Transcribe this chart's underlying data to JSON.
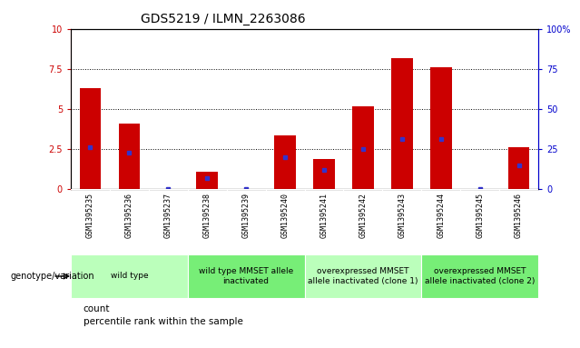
{
  "title": "GDS5219 / ILMN_2263086",
  "samples": [
    "GSM1395235",
    "GSM1395236",
    "GSM1395237",
    "GSM1395238",
    "GSM1395239",
    "GSM1395240",
    "GSM1395241",
    "GSM1395242",
    "GSM1395243",
    "GSM1395244",
    "GSM1395245",
    "GSM1395246"
  ],
  "counts": [
    6.3,
    4.1,
    0.0,
    1.1,
    0.0,
    3.35,
    1.9,
    5.15,
    8.2,
    7.6,
    0.0,
    2.6
  ],
  "percentiles": [
    26,
    23,
    0,
    7,
    0,
    20,
    12,
    25,
    31,
    31,
    0,
    15
  ],
  "ylim_left": [
    0,
    10
  ],
  "ylim_right": [
    0,
    100
  ],
  "yticks_left": [
    0,
    2.5,
    5.0,
    7.5,
    10
  ],
  "ytick_labels_left": [
    "0",
    "2.5",
    "5",
    "7.5",
    "10"
  ],
  "yticks_right": [
    0,
    25,
    50,
    75,
    100
  ],
  "ytick_labels_right": [
    "0",
    "25",
    "50",
    "75",
    "100%"
  ],
  "grid_values": [
    2.5,
    5.0,
    7.5
  ],
  "bar_color": "#cc0000",
  "dot_color": "#3333cc",
  "sample_bg": "#cccccc",
  "plot_bg": "#ffffff",
  "groups": [
    {
      "label": "wild type",
      "start": 0,
      "end": 3,
      "color": "#bbffbb"
    },
    {
      "label": "wild type MMSET allele\ninactivated",
      "start": 3,
      "end": 6,
      "color": "#77ee77"
    },
    {
      "label": "overexpressed MMSET\nallele inactivated (clone 1)",
      "start": 6,
      "end": 9,
      "color": "#bbffbb"
    },
    {
      "label": "overexpressed MMSET\nallele inactivated (clone 2)",
      "start": 9,
      "end": 12,
      "color": "#77ee77"
    }
  ],
  "legend_count_label": "count",
  "legend_pct_label": "percentile rank within the sample",
  "genotype_label": "genotype/variation",
  "title_fontsize": 10,
  "tick_fontsize": 7,
  "group_fontsize": 6.5,
  "legend_fontsize": 7.5,
  "sample_fontsize": 6
}
